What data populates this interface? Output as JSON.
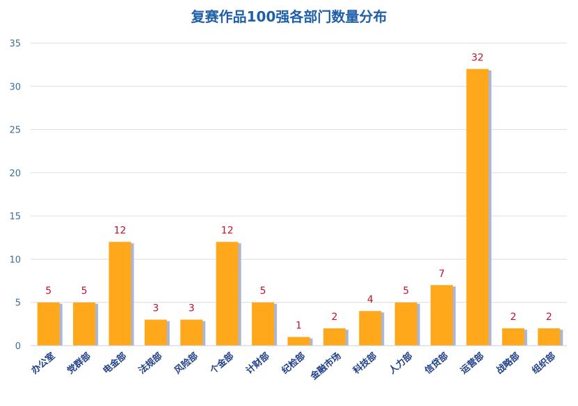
{
  "chart_data": {
    "type": "bar",
    "title": "复赛作品100强各部门数量分布",
    "xlabel": "",
    "ylabel": "",
    "categories": [
      "办公室",
      "党群部",
      "电金部",
      "法规部",
      "风险部",
      "个金部",
      "计财部",
      "纪检部",
      "金融市场",
      "科技部",
      "人力部",
      "信贷部",
      "运营部",
      "战略部",
      "组织部"
    ],
    "values": [
      5,
      5,
      12,
      3,
      3,
      12,
      5,
      1,
      2,
      4,
      5,
      7,
      32,
      2,
      2
    ],
    "ylim": [
      0,
      35
    ],
    "yticks": [
      0,
      5,
      10,
      15,
      20,
      25,
      30,
      35
    ],
    "grid": true,
    "legend": "none",
    "colors": {
      "bar": "#ffa81c",
      "bar_shadow": "#a9b6d8",
      "title": "#1f5fa8",
      "data_label": "#c0102a",
      "grid": "#d9dde3"
    }
  }
}
